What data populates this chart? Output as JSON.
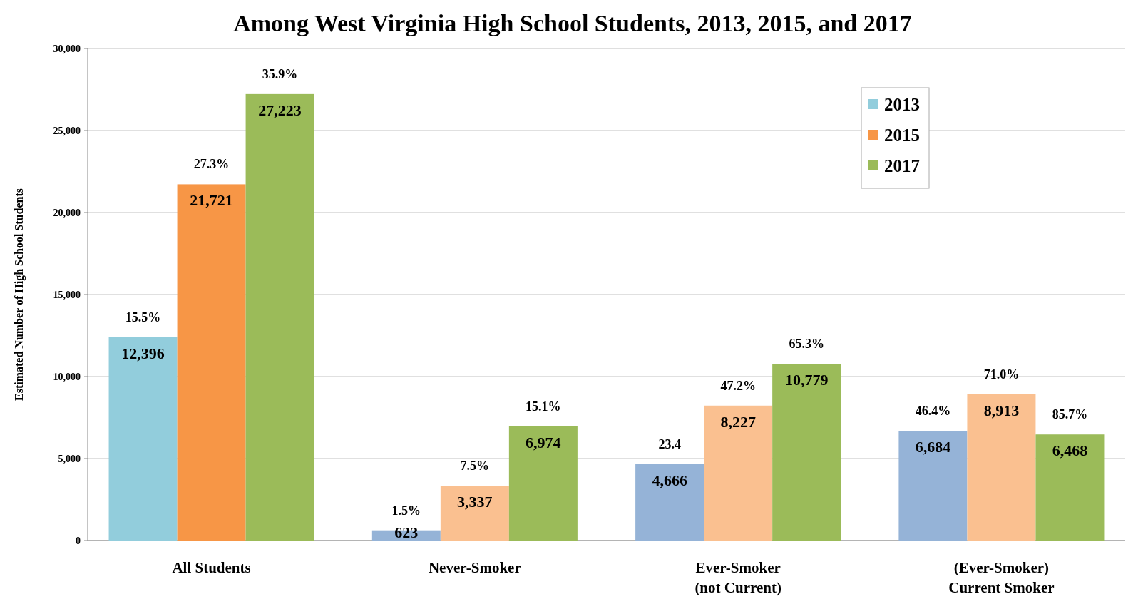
{
  "chart_data": {
    "type": "bar",
    "title": "Among West Virginia High School Students, 2013, 2015, and 2017",
    "ylabel": "Estimated Number of High School Students",
    "categories": [
      "All Students",
      "Never-Smoker",
      "Ever-Smoker\n(not Current)",
      "(Ever-Smoker)\nCurrent Smoker"
    ],
    "series": [
      {
        "name": "2013",
        "color": "#92cddc",
        "colors": [
          "#92cddc",
          "#95b3d7",
          "#95b3d7",
          "#95b3d7"
        ],
        "values": [
          12396,
          623,
          4666,
          6684
        ],
        "value_labels": [
          "12,396",
          "623",
          "4,666",
          "6,684"
        ]
      },
      {
        "name": "2015",
        "color": "#f79646",
        "colors": [
          "#f79646",
          "#fac090",
          "#fac090",
          "#fac090"
        ],
        "values": [
          21721,
          3337,
          8227,
          8913
        ],
        "value_labels": [
          "21,721",
          "3,337",
          "8,227",
          "8,913"
        ]
      },
      {
        "name": "2017",
        "color": "#9bbb59",
        "colors": [
          "#9bbb59",
          "#9bbb59",
          "#9bbb59",
          "#9bbb59"
        ],
        "values": [
          27223,
          6974,
          10779,
          6468
        ],
        "value_labels": [
          "27,223",
          "6,974",
          "10,779",
          "6,468"
        ]
      }
    ],
    "annotations": [
      "15.5%",
      "27.3%",
      "35.9%",
      "1.5%",
      "7.5%",
      "15.1%",
      "23.4",
      "47.2%",
      "65.3%",
      "46.4%",
      "71.0%",
      "85.7%"
    ],
    "ylim": [
      0,
      30000
    ],
    "yticks": [
      0,
      {
        "value": 5000,
        "label": "5,000"
      },
      {
        "value": 10000,
        "label": "10,000"
      },
      {
        "value": 15000,
        "label": "15,000"
      },
      {
        "value": 20000,
        "label": "20,000"
      },
      {
        "value": 25000,
        "label": "25,000"
      },
      {
        "value": 30000,
        "label": "30,000"
      }
    ],
    "grid": "y",
    "legend": "top right"
  }
}
